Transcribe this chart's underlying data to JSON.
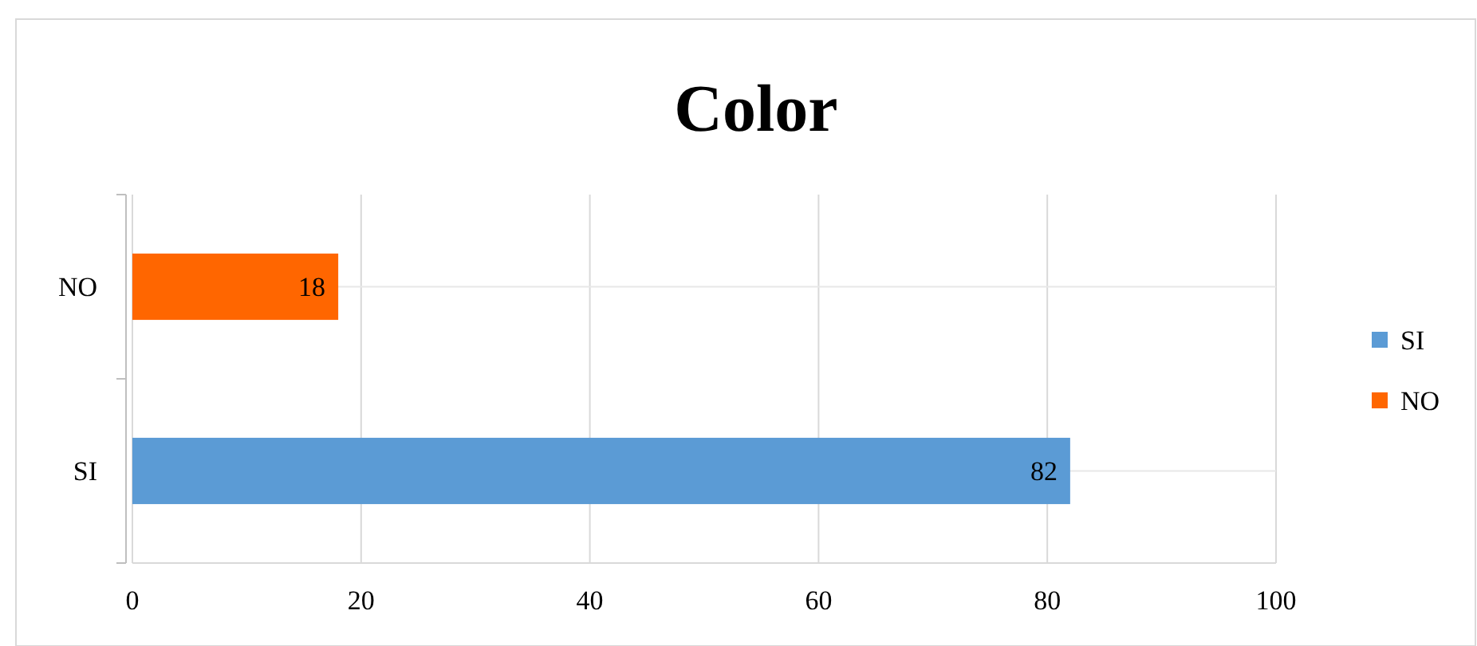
{
  "chart_data": {
    "type": "bar",
    "title": "Color",
    "orientation": "horizontal",
    "stacked": true,
    "categories": [
      "NO",
      "SI"
    ],
    "series": [
      {
        "name": "SI",
        "color": "#5b9bd5",
        "values": [
          null,
          82
        ]
      },
      {
        "name": "NO",
        "color": "#ff6600",
        "values": [
          18,
          null
        ]
      }
    ],
    "xlim": [
      0,
      100
    ],
    "xticks": [
      0,
      20,
      40,
      60,
      80,
      100
    ],
    "grid": true,
    "data_labels": true,
    "legend": "right"
  }
}
